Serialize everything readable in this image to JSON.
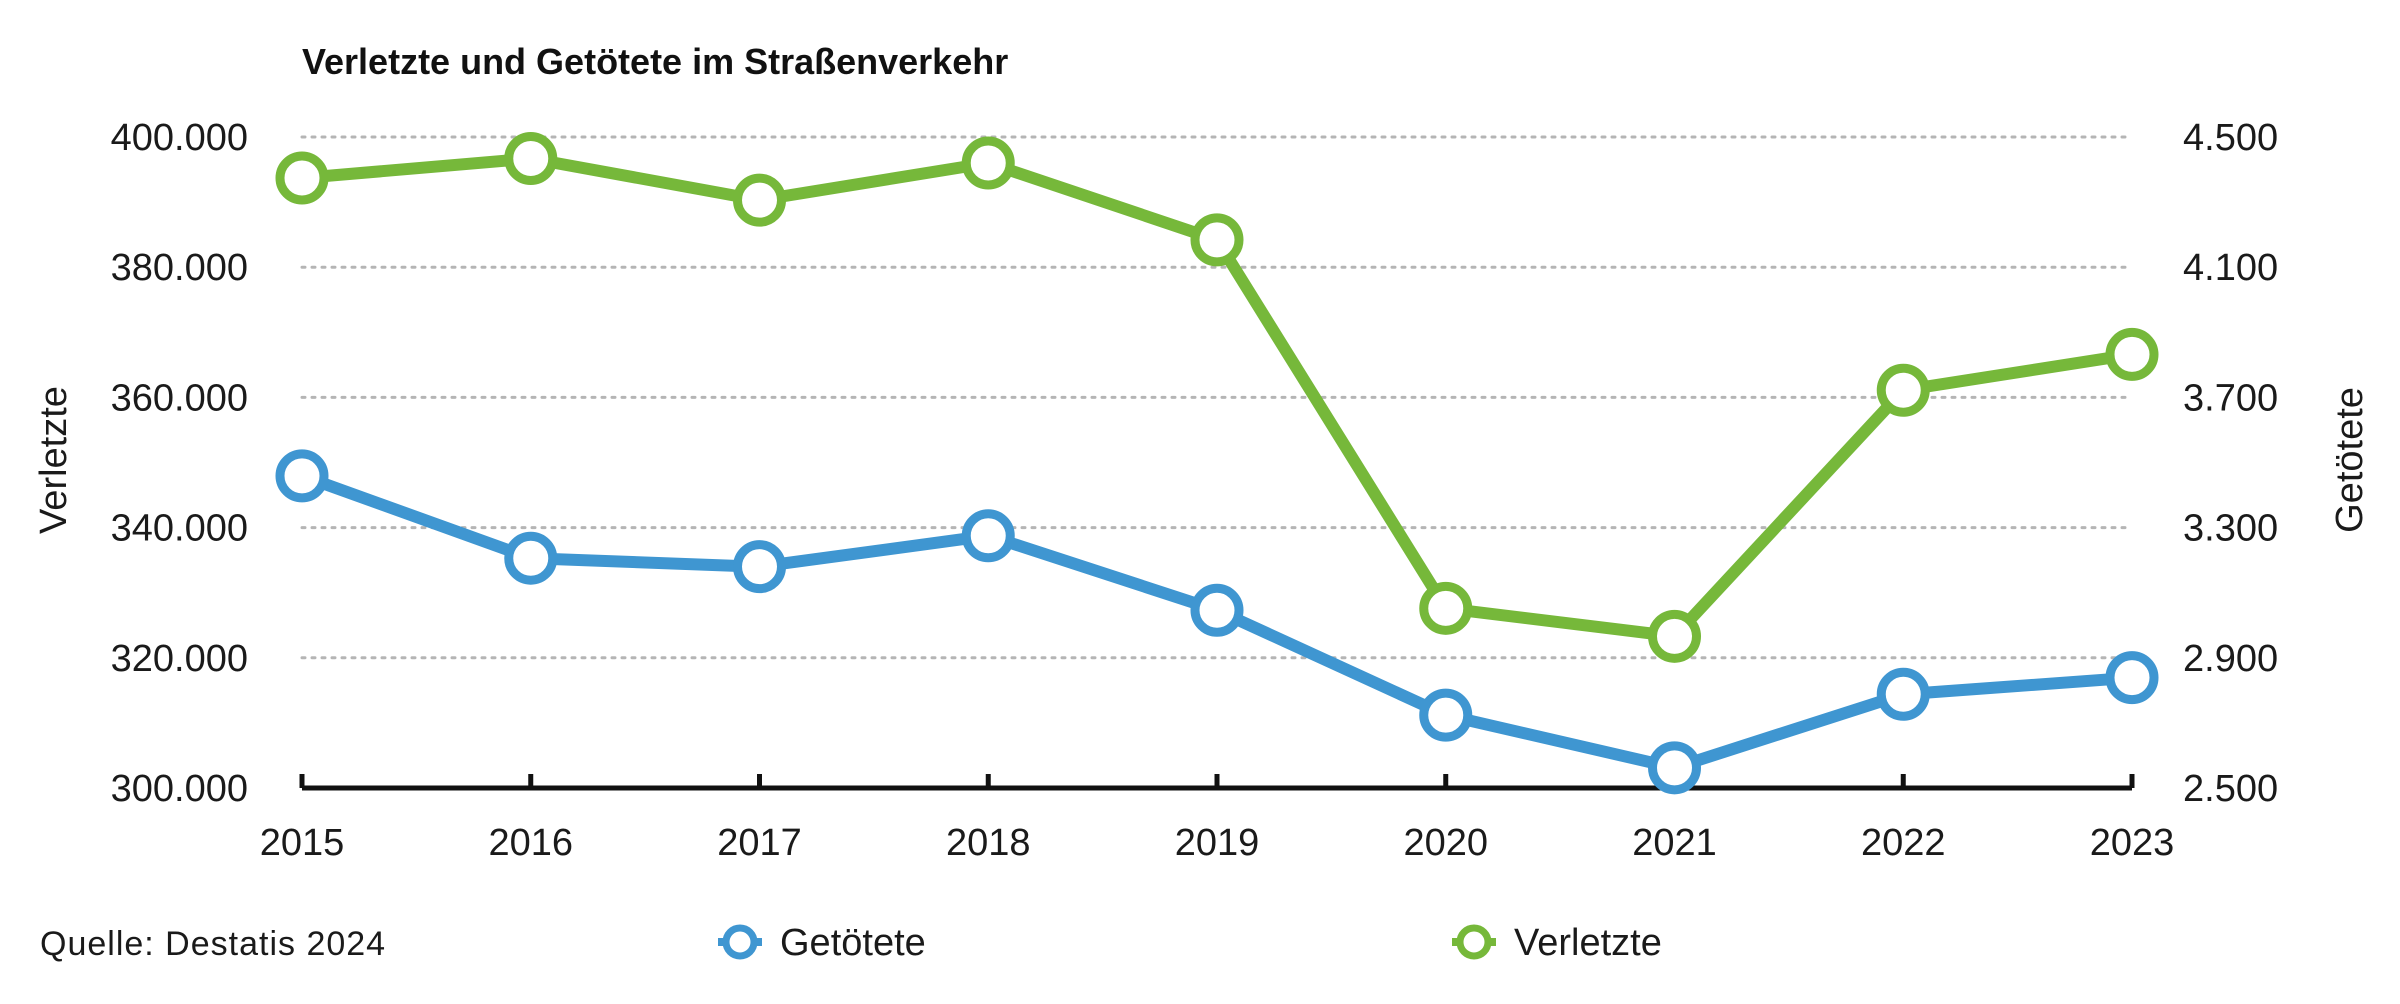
{
  "chart_data": {
    "type": "line",
    "title": "Verletzte und Getötete im Straßenverkehr",
    "x": [
      2015,
      2016,
      2017,
      2018,
      2019,
      2020,
      2021,
      2022,
      2023
    ],
    "x_tick_labels": [
      "2015",
      "2016",
      "2017",
      "2018",
      "2019",
      "2020",
      "2021",
      "2022",
      "2023"
    ],
    "ylabel_left": "Verletzte",
    "ylabel_right": "Getötete",
    "ylim_left": [
      300000,
      400000
    ],
    "ylim_right": [
      2500,
      4500
    ],
    "y_ticks_left": [
      "300.000",
      "320.000",
      "340.000",
      "360.000",
      "380.000",
      "400.000"
    ],
    "y_ticks_right": [
      "2.500",
      "2.900",
      "3.300",
      "3.700",
      "4.100",
      "4.500"
    ],
    "grid": "horizontal dotted",
    "legend_position": "bottom",
    "series": [
      {
        "name": "Verletzte",
        "axis": "left",
        "color": "#76b83a",
        "values": [
          393700,
          396700,
          390300,
          396000,
          384200,
          327600,
          323300,
          361100,
          366600
        ]
      },
      {
        "name": "Getötete",
        "axis": "right",
        "color": "#3f96d1",
        "values": [
          3459,
          3206,
          3180,
          3275,
          3046,
          2724,
          2562,
          2788,
          2839
        ]
      }
    ],
    "source": "Quelle: Destatis 2024"
  }
}
